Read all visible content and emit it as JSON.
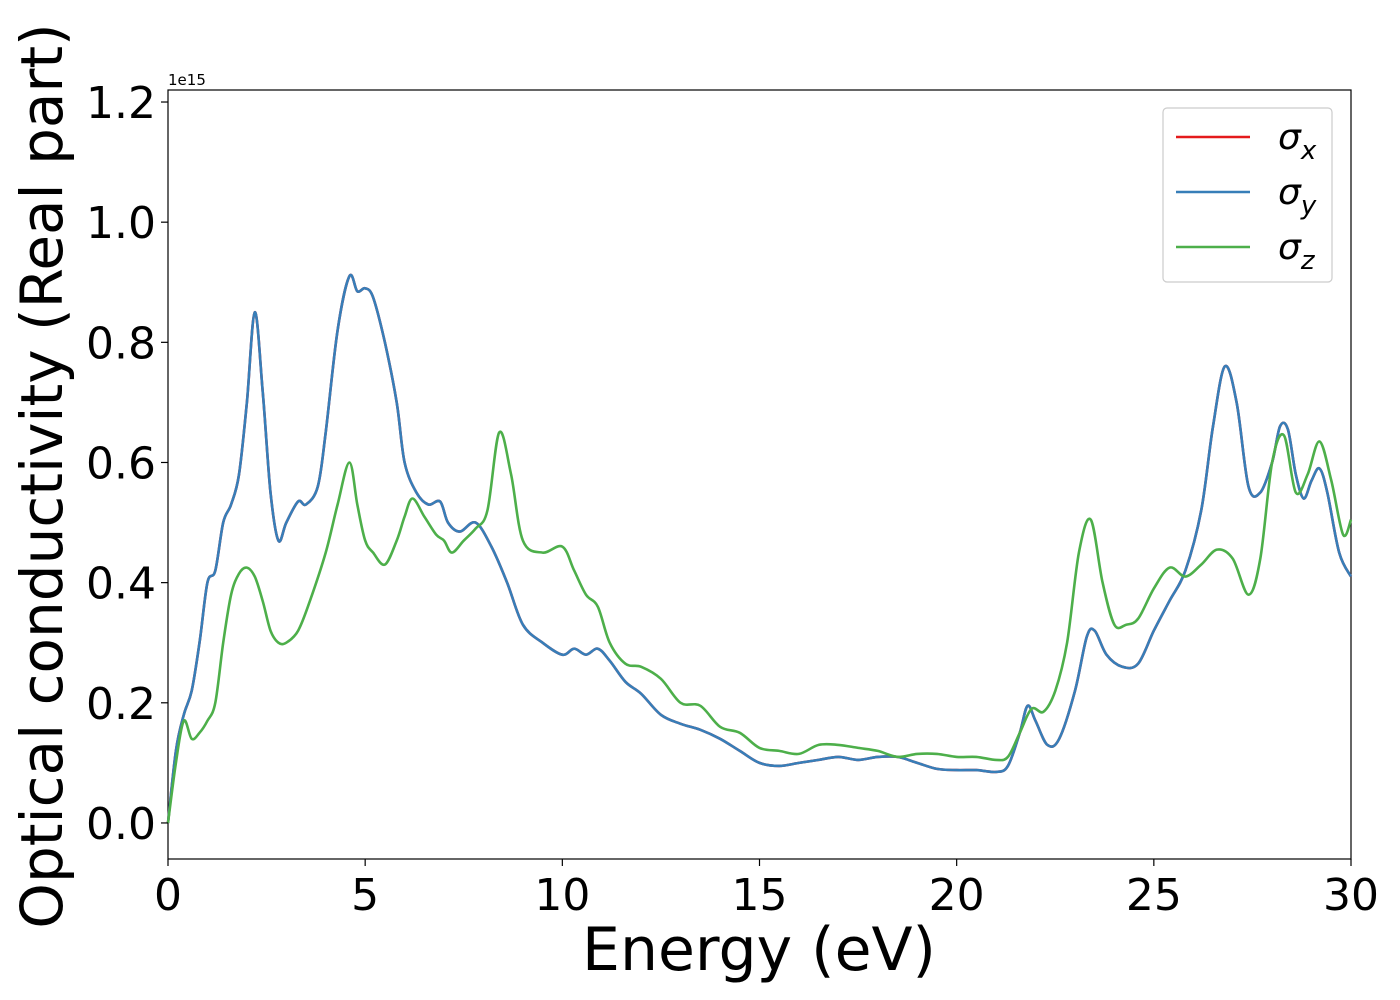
{
  "chart_data": {
    "type": "line",
    "xlabel": "Energy (eV)",
    "ylabel": "Optical conductivity (Real part)",
    "y_offset_label": "1e15",
    "xlim": [
      0,
      30
    ],
    "ylim": [
      -0.06,
      1.22
    ],
    "y_scale_factor": 1000000000000000.0,
    "xticks": [
      0,
      5,
      10,
      15,
      20,
      25,
      30
    ],
    "xtick_labels": [
      "0",
      "5",
      "10",
      "15",
      "20",
      "25",
      "30"
    ],
    "yticks": [
      0.0,
      0.2,
      0.4,
      0.6,
      0.8,
      1.0,
      1.2
    ],
    "ytick_labels": [
      "0.0",
      "0.2",
      "0.4",
      "0.6",
      "0.8",
      "1.0",
      "1.2"
    ],
    "grid": false,
    "legend_position": "top-right",
    "series": [
      {
        "name": "σx",
        "base": "σ",
        "sub": "x",
        "color": "#e41a1c",
        "x": [
          0,
          0.2,
          0.4,
          0.6,
          0.8,
          1.0,
          1.2,
          1.4,
          1.6,
          1.8,
          2.0,
          2.2,
          2.4,
          2.6,
          2.8,
          3.0,
          3.3,
          3.5,
          3.8,
          4.0,
          4.3,
          4.6,
          4.8,
          5.0,
          5.2,
          5.5,
          5.8,
          6.0,
          6.3,
          6.6,
          6.9,
          7.1,
          7.4,
          7.8,
          8.2,
          8.6,
          9.0,
          9.5,
          10.0,
          10.3,
          10.6,
          10.9,
          11.2,
          11.6,
          12.0,
          12.5,
          13.0,
          13.5,
          14.0,
          14.5,
          15.0,
          15.5,
          16.0,
          16.5,
          17.0,
          17.5,
          18.0,
          18.5,
          19.0,
          19.5,
          20.0,
          20.5,
          21.0,
          21.3,
          21.6,
          21.8,
          22.0,
          22.3,
          22.6,
          23.0,
          23.3,
          23.5,
          23.8,
          24.2,
          24.6,
          25.0,
          25.4,
          25.8,
          26.2,
          26.5,
          26.8,
          27.1,
          27.4,
          27.7,
          28.0,
          28.2,
          28.4,
          28.6,
          28.8,
          29.0,
          29.2,
          29.4,
          29.7,
          30.0
        ],
        "values": [
          0.0,
          0.12,
          0.18,
          0.22,
          0.3,
          0.4,
          0.42,
          0.5,
          0.53,
          0.58,
          0.7,
          0.85,
          0.72,
          0.55,
          0.47,
          0.5,
          0.535,
          0.53,
          0.56,
          0.65,
          0.82,
          0.91,
          0.885,
          0.89,
          0.875,
          0.8,
          0.7,
          0.6,
          0.55,
          0.53,
          0.535,
          0.5,
          0.485,
          0.5,
          0.46,
          0.4,
          0.33,
          0.3,
          0.28,
          0.29,
          0.28,
          0.29,
          0.27,
          0.235,
          0.215,
          0.18,
          0.165,
          0.155,
          0.14,
          0.12,
          0.1,
          0.095,
          0.1,
          0.105,
          0.11,
          0.105,
          0.11,
          0.11,
          0.1,
          0.09,
          0.088,
          0.088,
          0.085,
          0.095,
          0.15,
          0.195,
          0.17,
          0.13,
          0.14,
          0.22,
          0.31,
          0.32,
          0.28,
          0.26,
          0.265,
          0.32,
          0.37,
          0.42,
          0.52,
          0.66,
          0.76,
          0.7,
          0.56,
          0.55,
          0.6,
          0.66,
          0.655,
          0.58,
          0.54,
          0.57,
          0.59,
          0.55,
          0.45,
          0.41
        ]
      },
      {
        "name": "σy",
        "base": "σ",
        "sub": "y",
        "color": "#377eb8",
        "x": [
          0,
          0.2,
          0.4,
          0.6,
          0.8,
          1.0,
          1.2,
          1.4,
          1.6,
          1.8,
          2.0,
          2.2,
          2.4,
          2.6,
          2.8,
          3.0,
          3.3,
          3.5,
          3.8,
          4.0,
          4.3,
          4.6,
          4.8,
          5.0,
          5.2,
          5.5,
          5.8,
          6.0,
          6.3,
          6.6,
          6.9,
          7.1,
          7.4,
          7.8,
          8.2,
          8.6,
          9.0,
          9.5,
          10.0,
          10.3,
          10.6,
          10.9,
          11.2,
          11.6,
          12.0,
          12.5,
          13.0,
          13.5,
          14.0,
          14.5,
          15.0,
          15.5,
          16.0,
          16.5,
          17.0,
          17.5,
          18.0,
          18.5,
          19.0,
          19.5,
          20.0,
          20.5,
          21.0,
          21.3,
          21.6,
          21.8,
          22.0,
          22.3,
          22.6,
          23.0,
          23.3,
          23.5,
          23.8,
          24.2,
          24.6,
          25.0,
          25.4,
          25.8,
          26.2,
          26.5,
          26.8,
          27.1,
          27.4,
          27.7,
          28.0,
          28.2,
          28.4,
          28.6,
          28.8,
          29.0,
          29.2,
          29.4,
          29.7,
          30.0
        ],
        "values": [
          0.0,
          0.12,
          0.18,
          0.22,
          0.3,
          0.4,
          0.42,
          0.5,
          0.53,
          0.58,
          0.7,
          0.85,
          0.72,
          0.55,
          0.47,
          0.5,
          0.535,
          0.53,
          0.56,
          0.65,
          0.82,
          0.91,
          0.885,
          0.89,
          0.875,
          0.8,
          0.7,
          0.6,
          0.55,
          0.53,
          0.535,
          0.5,
          0.485,
          0.5,
          0.46,
          0.4,
          0.33,
          0.3,
          0.28,
          0.29,
          0.28,
          0.29,
          0.27,
          0.235,
          0.215,
          0.18,
          0.165,
          0.155,
          0.14,
          0.12,
          0.1,
          0.095,
          0.1,
          0.105,
          0.11,
          0.105,
          0.11,
          0.11,
          0.1,
          0.09,
          0.088,
          0.088,
          0.085,
          0.095,
          0.15,
          0.195,
          0.17,
          0.13,
          0.14,
          0.22,
          0.31,
          0.32,
          0.28,
          0.26,
          0.265,
          0.32,
          0.37,
          0.42,
          0.52,
          0.66,
          0.76,
          0.7,
          0.56,
          0.55,
          0.6,
          0.66,
          0.655,
          0.58,
          0.54,
          0.57,
          0.59,
          0.55,
          0.45,
          0.41
        ]
      },
      {
        "name": "σz",
        "base": "σ",
        "sub": "z",
        "color": "#4daf4a",
        "x": [
          0,
          0.2,
          0.4,
          0.6,
          0.8,
          1.0,
          1.2,
          1.4,
          1.6,
          1.8,
          2.0,
          2.2,
          2.4,
          2.6,
          2.8,
          3.0,
          3.3,
          3.6,
          4.0,
          4.3,
          4.6,
          4.8,
          5.0,
          5.2,
          5.5,
          5.8,
          6.0,
          6.2,
          6.5,
          6.8,
          7.0,
          7.2,
          7.5,
          7.8,
          8.1,
          8.4,
          8.7,
          9.0,
          9.5,
          10.0,
          10.3,
          10.6,
          10.9,
          11.2,
          11.6,
          12.0,
          12.5,
          13.0,
          13.5,
          14.0,
          14.5,
          15.0,
          15.5,
          16.0,
          16.5,
          17.0,
          17.5,
          18.0,
          18.5,
          19.0,
          19.5,
          20.0,
          20.5,
          21.0,
          21.3,
          21.6,
          21.9,
          22.2,
          22.5,
          22.8,
          23.1,
          23.4,
          23.7,
          24.0,
          24.3,
          24.6,
          25.0,
          25.4,
          25.8,
          26.2,
          26.6,
          27.0,
          27.4,
          27.7,
          28.0,
          28.3,
          28.6,
          28.9,
          29.2,
          29.5,
          29.8,
          30.0
        ],
        "values": [
          0.0,
          0.1,
          0.17,
          0.14,
          0.15,
          0.17,
          0.2,
          0.3,
          0.38,
          0.415,
          0.425,
          0.41,
          0.37,
          0.32,
          0.3,
          0.3,
          0.32,
          0.37,
          0.45,
          0.53,
          0.6,
          0.53,
          0.47,
          0.45,
          0.43,
          0.47,
          0.51,
          0.54,
          0.51,
          0.48,
          0.47,
          0.45,
          0.47,
          0.49,
          0.52,
          0.65,
          0.58,
          0.47,
          0.45,
          0.46,
          0.42,
          0.38,
          0.36,
          0.3,
          0.265,
          0.26,
          0.24,
          0.2,
          0.195,
          0.16,
          0.15,
          0.125,
          0.12,
          0.115,
          0.13,
          0.13,
          0.125,
          0.12,
          0.11,
          0.115,
          0.115,
          0.11,
          0.11,
          0.105,
          0.11,
          0.15,
          0.19,
          0.185,
          0.22,
          0.3,
          0.45,
          0.505,
          0.4,
          0.33,
          0.33,
          0.34,
          0.39,
          0.425,
          0.41,
          0.43,
          0.455,
          0.44,
          0.38,
          0.44,
          0.6,
          0.645,
          0.55,
          0.58,
          0.635,
          0.57,
          0.48,
          0.505
        ]
      }
    ]
  }
}
